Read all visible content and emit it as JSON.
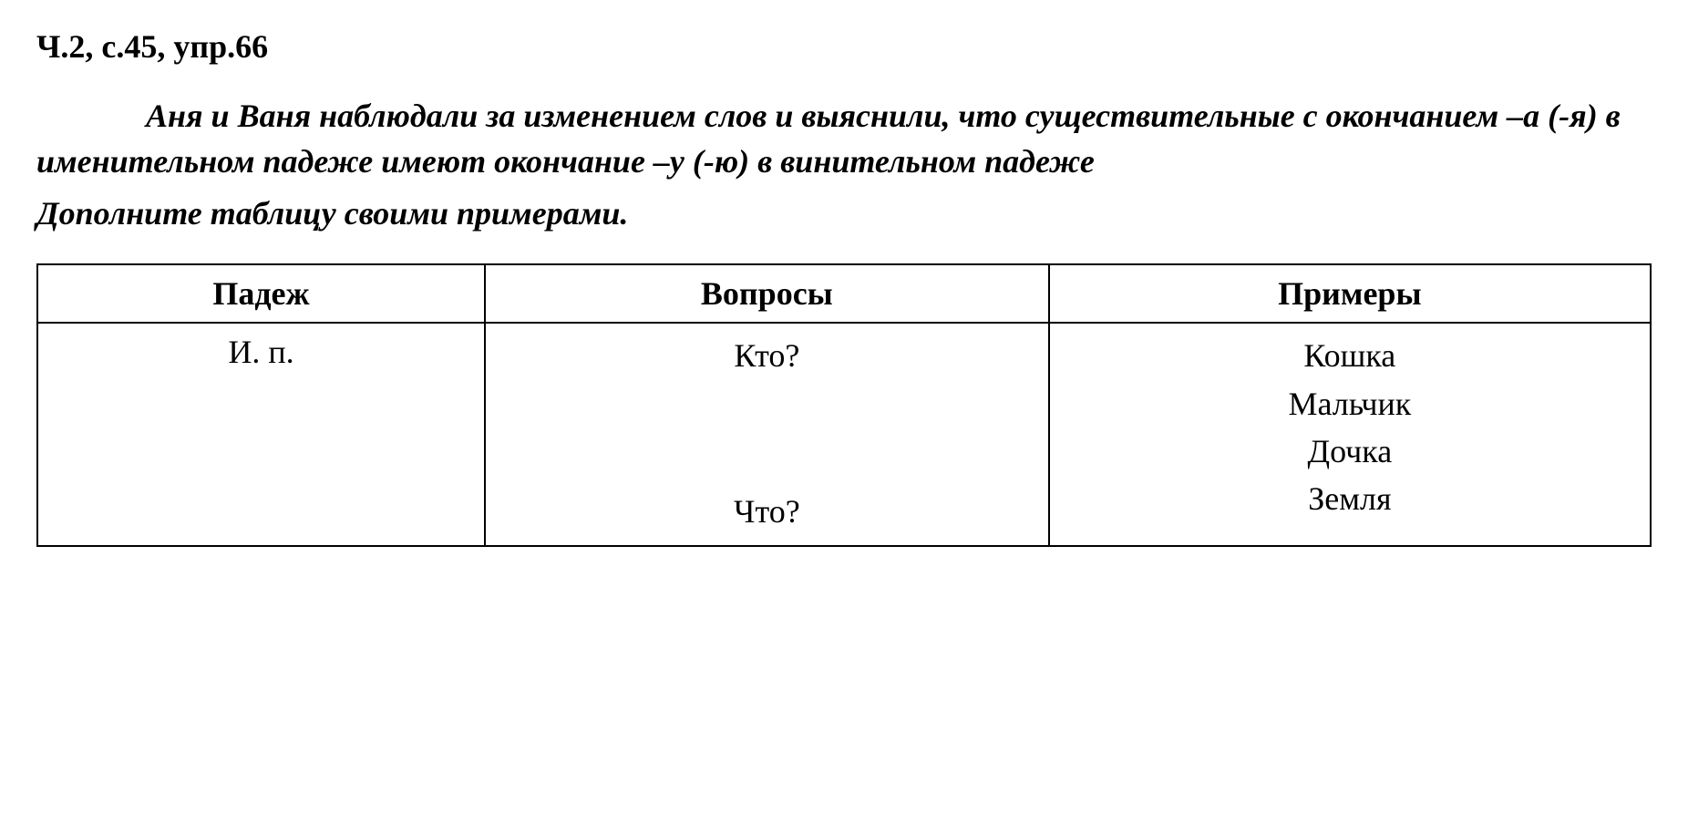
{
  "header": "Ч.2, с.45, упр.66",
  "paragraph1": "Аня и Ваня наблюдали за изменением слов и выяснили, что существительные с окончанием –а (-я) в именительном падеже имеют окончание –у (-ю) в винительном падеже",
  "paragraph2": "Дополните таблицу своими примерами.",
  "table": {
    "columns": [
      "Падеж",
      "Вопросы",
      "Примеры"
    ],
    "rows": [
      {
        "case": "И. п.",
        "questions": [
          "Кто?",
          "Что?"
        ],
        "examples": [
          "Кошка",
          "Мальчик",
          "Дочка",
          "Земля"
        ]
      }
    ],
    "border_color": "#000000",
    "background_color": "#ffffff",
    "header_fontsize": 36,
    "cell_fontsize": 36,
    "column_widths": [
      "33%",
      "33%",
      "34%"
    ]
  },
  "styling": {
    "font_family": "Times New Roman",
    "header_fontsize": 36,
    "paragraph_fontsize": 36,
    "text_color": "#000000",
    "background_color": "#ffffff"
  }
}
